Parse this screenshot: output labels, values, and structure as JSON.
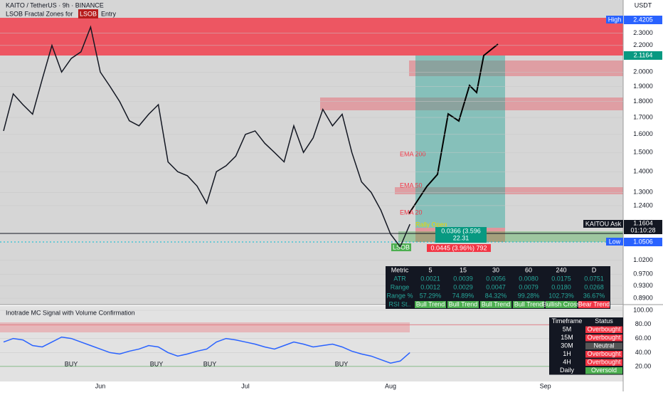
{
  "chart_data": [
    {
      "type": "line",
      "title": "KAITO / TetherUS · 9h · BINANCE",
      "subtitle": "LSOB Fractal Zones for",
      "entry_tag": "LSOB",
      "entry_text": "Entry",
      "currency": "USDT",
      "log": true,
      "color": "#131722",
      "categories": [
        null,
        null,
        null,
        null,
        null,
        null,
        null,
        null,
        null,
        null,
        "Jun",
        null,
        null,
        null,
        null,
        null,
        null,
        null,
        null,
        null,
        null,
        null,
        null,
        null,
        null,
        "Jul",
        null,
        null,
        null,
        null,
        null,
        null,
        null,
        null,
        null,
        null,
        null,
        null,
        null,
        null,
        "Aug",
        null,
        null,
        null,
        null,
        null,
        null,
        null,
        null,
        null,
        null,
        null,
        null,
        null,
        null,
        null,
        "Sep",
        null,
        null,
        null,
        null,
        null,
        null,
        null
      ],
      "values": [
        1.62,
        1.85,
        1.78,
        1.72,
        1.95,
        2.2,
        2.0,
        2.1,
        2.15,
        2.35,
        2.0,
        1.9,
        1.8,
        1.68,
        1.65,
        1.72,
        1.78,
        1.45,
        1.4,
        1.38,
        1.33,
        1.25,
        1.4,
        1.43,
        1.48,
        1.6,
        1.62,
        1.55,
        1.5,
        1.45,
        1.65,
        1.5,
        1.58,
        1.75,
        1.65,
        1.72,
        1.5,
        1.35,
        1.3,
        1.22,
        1.12,
        1.07,
        1.16,
        null,
        null,
        null,
        null,
        null,
        null,
        null,
        null,
        null,
        null,
        null,
        null,
        null,
        null,
        null,
        null,
        null,
        null,
        null,
        null,
        null
      ],
      "ylim": [
        0.87,
        2.46
      ],
      "yticks": [
        {
          "value": 2.3,
          "label": "2.3000"
        },
        {
          "value": 2.2,
          "label": "2.2000"
        },
        {
          "value": 2.0,
          "label": "2.0000"
        },
        {
          "value": 1.9,
          "label": "1.9000"
        },
        {
          "value": 1.8,
          "label": "1.8000"
        },
        {
          "value": 1.7,
          "label": "1.7000"
        },
        {
          "value": 1.6,
          "label": "1.6000"
        },
        {
          "value": 1.5,
          "label": "1.5000"
        },
        {
          "value": 1.4,
          "label": "1.4000"
        },
        {
          "value": 1.3,
          "label": "1.3000"
        },
        {
          "value": 1.24,
          "label": "1.2400"
        },
        {
          "value": 1.02,
          "label": "1.0200"
        },
        {
          "value": 0.97,
          "label": "0.9700"
        },
        {
          "value": 0.93,
          "label": "0.9300"
        },
        {
          "value": 0.89,
          "label": "0.8900"
        }
      ],
      "annotations": [
        "EMA 200",
        "EMA 50",
        "EMA 20",
        "LSOB",
        "Rally Open",
        "0.0366 (3.596",
        "22.31",
        "0.0445 (3.96%) 792"
      ],
      "badges": {
        "high": "High",
        "high_value": "2.4205",
        "last": "2.1164",
        "ask": "KAITOU Ask",
        "ask_value": "1.1604",
        "timer": "01:10:28",
        "low": "Low",
        "low_value": "1.0506"
      }
    },
    {
      "type": "line",
      "title": "Inotrade MC Signal with Volume Confirmation",
      "color": "#2962ff",
      "ylim": [
        0,
        100
      ],
      "yticks": [
        {
          "value": 100,
          "label": "100.00"
        },
        {
          "value": 80,
          "label": "80.00"
        },
        {
          "value": 60,
          "label": "60.00"
        },
        {
          "value": 40,
          "label": "40.00"
        },
        {
          "value": 20,
          "label": "20.00"
        }
      ],
      "values": [
        55,
        60,
        58,
        50,
        48,
        55,
        62,
        60,
        55,
        50,
        45,
        40,
        38,
        42,
        45,
        50,
        48,
        40,
        35,
        38,
        42,
        45,
        55,
        60,
        58,
        55,
        52,
        48,
        45,
        50,
        55,
        52,
        48,
        50,
        52,
        48,
        42,
        38,
        35,
        30,
        25,
        28,
        40
      ],
      "signals": [
        "BUY",
        "BUY",
        "BUY",
        "BUY"
      ]
    }
  ],
  "metrics": {
    "header": [
      "Metric",
      "5",
      "15",
      "30",
      "60",
      "240",
      "D"
    ],
    "rows": [
      [
        "ATR",
        "0.0021",
        "0.0039",
        "0.0056",
        "0.0080",
        "0.0175",
        "0.0751"
      ],
      [
        "Range",
        "0.0012",
        "0.0029",
        "0.0047",
        "0.0079",
        "0.0180",
        "0.0268"
      ],
      [
        "Range %",
        "57.29%",
        "74.89%",
        "84.32%",
        "99.28%",
        "102.73%",
        "36.67%"
      ],
      [
        "RSI St..",
        "Bull Trend",
        "Bull Trend",
        "Bull Trend",
        "Bull Trend",
        "Bullish Cross",
        "Bear Trend"
      ]
    ]
  },
  "status": {
    "header": [
      "Timeframe",
      "Status"
    ],
    "rows": [
      [
        "5M",
        "Overbought"
      ],
      [
        "15M",
        "Overbought"
      ],
      [
        "30M",
        "Neutral"
      ],
      [
        "1H",
        "Overbought"
      ],
      [
        "4H",
        "Overbought"
      ],
      [
        "Daily",
        "Oversold"
      ]
    ]
  }
}
